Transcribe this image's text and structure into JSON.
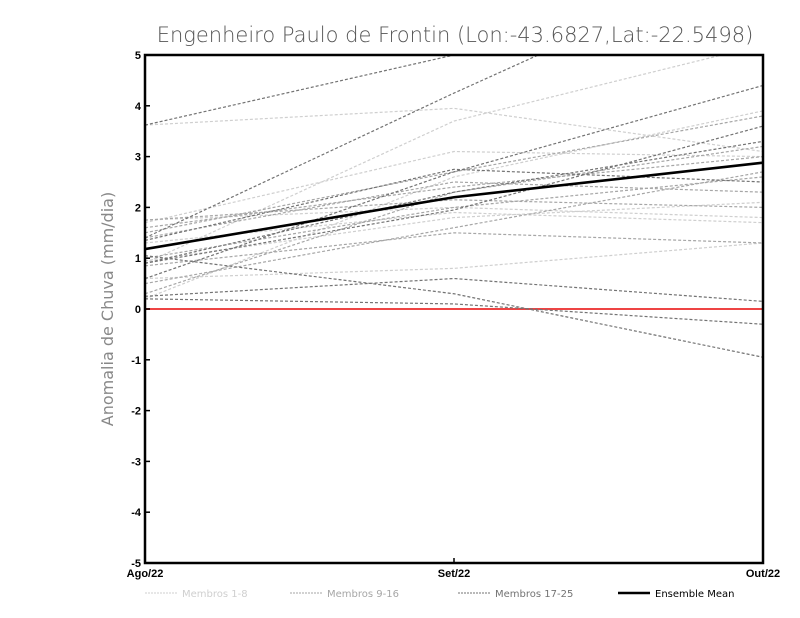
{
  "chart_data": {
    "type": "line",
    "title": "Engenheiro Paulo de Frontin (Lon:-43.6827,Lat:-22.5498)",
    "xlabel": "",
    "ylabel": "Anomalia de Chuva (mm/dia)",
    "categories": [
      "Ago/22",
      "Set/22",
      "Out/22"
    ],
    "ylim": [
      -5,
      5
    ],
    "yticks": [
      "5",
      "4",
      "3",
      "2",
      "1",
      "0",
      "-1",
      "-2",
      "-3",
      "-4",
      "-5"
    ],
    "grid": false,
    "legend_position": "bottom",
    "reference_line": {
      "value": 0,
      "color": "#ee4444"
    },
    "groups": [
      {
        "name": "Membros 1-8",
        "color": "#cfcfcf",
        "members": [
          [
            3.62,
            3.95,
            3.1
          ],
          [
            0.9,
            3.7,
            5.2
          ],
          [
            1.75,
            2.0,
            1.8
          ],
          [
            0.6,
            0.8,
            1.3
          ],
          [
            1.3,
            1.9,
            1.7
          ],
          [
            0.2,
            2.6,
            3.9
          ],
          [
            1.7,
            3.1,
            3.0
          ],
          [
            0.95,
            1.8,
            2.1
          ]
        ]
      },
      {
        "name": "Membros 9-16",
        "color": "#a6a6a6",
        "members": [
          [
            1.5,
            2.7,
            3.8
          ],
          [
            1.0,
            2.0,
            2.6
          ],
          [
            0.85,
            1.5,
            1.3
          ],
          [
            1.6,
            2.4,
            3.0
          ],
          [
            0.3,
            2.3,
            3.2
          ],
          [
            1.4,
            2.5,
            2.3
          ],
          [
            0.5,
            1.6,
            2.7
          ],
          [
            1.75,
            2.15,
            2.0
          ]
        ]
      },
      {
        "name": "Membros 17-25",
        "color": "#737373",
        "members": [
          [
            3.62,
            5.0,
            6.0
          ],
          [
            1.4,
            4.25,
            7.0
          ],
          [
            0.25,
            0.6,
            0.15
          ],
          [
            1.05,
            0.3,
            -0.95
          ],
          [
            0.2,
            0.1,
            -0.3
          ],
          [
            0.6,
            2.7,
            4.4
          ],
          [
            0.9,
            1.95,
            3.6
          ],
          [
            0.9,
            2.3,
            3.3
          ],
          [
            1.35,
            2.75,
            2.5
          ]
        ]
      }
    ],
    "ensemble_mean": {
      "name": "Ensemble Mean",
      "color": "#000000",
      "values": [
        1.18,
        2.2,
        2.88
      ]
    }
  }
}
